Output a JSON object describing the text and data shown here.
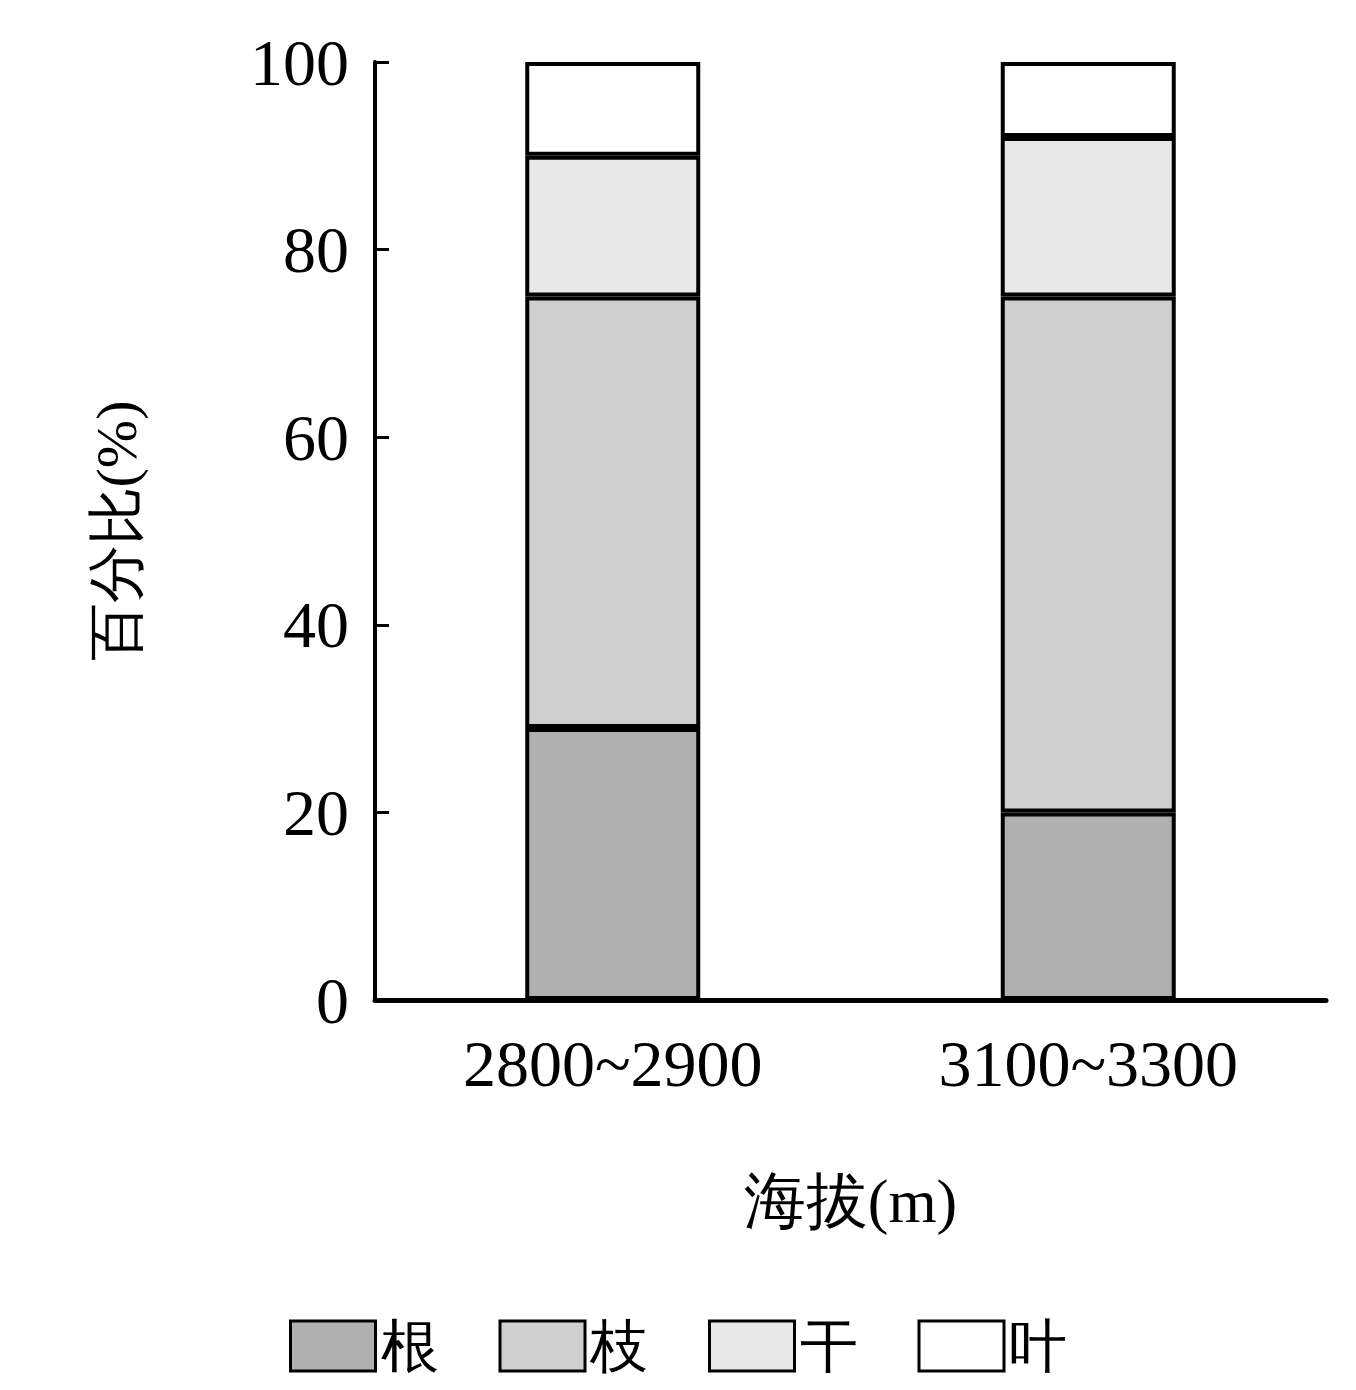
{
  "chart_data": {
    "type": "bar",
    "stacked": true,
    "xlabel": "海拔(m)",
    "ylabel": "百分比(%)",
    "categories": [
      "2800~2900",
      "3100~3300"
    ],
    "series": [
      {
        "name": "根",
        "color": "#b0b0b0",
        "values": [
          29,
          20
        ]
      },
      {
        "name": "枝",
        "color": "#cfcfcf",
        "values": [
          46,
          55
        ]
      },
      {
        "name": "干",
        "color": "#e8e8e8",
        "values": [
          15,
          17
        ]
      },
      {
        "name": "叶",
        "color": "#ffffff",
        "values": [
          10,
          8
        ]
      }
    ],
    "ylim": [
      0,
      100
    ],
    "yticks": [
      0,
      20,
      40,
      60,
      80,
      100
    ],
    "grid": false,
    "legend": "bottom"
  }
}
